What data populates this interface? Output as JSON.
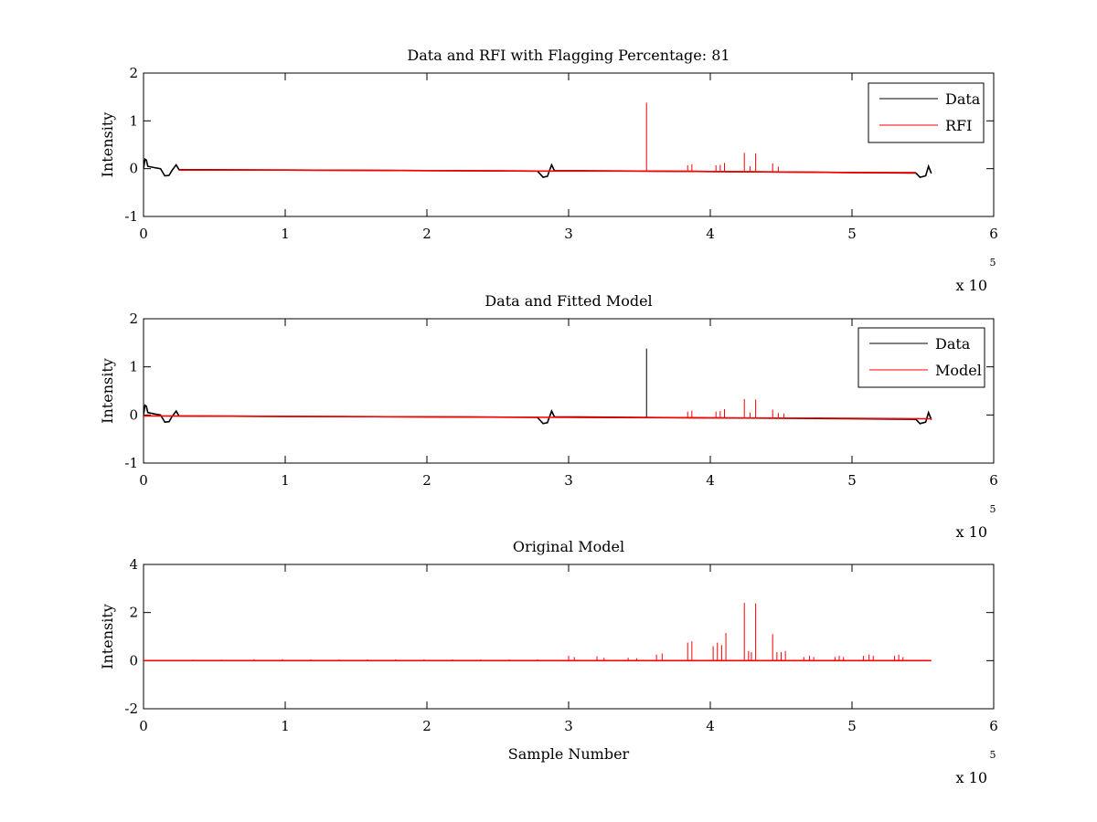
{
  "chart_data": [
    {
      "type": "line",
      "title": "Data and RFI with Flagging Percentage: 81",
      "xlabel": "",
      "ylabel": "Intensity",
      "xlim": [
        0,
        6
      ],
      "ylim": [
        -1,
        2
      ],
      "xticks": [
        "0",
        "1",
        "2",
        "3",
        "4",
        "5",
        "6"
      ],
      "yticks": [
        "-1",
        "0",
        "1",
        "2"
      ],
      "x_exponent": {
        "base": "x 10",
        "power": "5"
      },
      "legend": {
        "placement": "top-right",
        "entries": [
          {
            "name": "Data",
            "color": "#000000"
          },
          {
            "name": "RFI",
            "color": "#ff0000"
          }
        ]
      },
      "series": [
        {
          "name": "Data",
          "color": "#000000",
          "points": [
            [
              0,
              0
            ],
            [
              0.01,
              0.2
            ],
            [
              0.02,
              0.18
            ],
            [
              0.03,
              0.05
            ],
            [
              0.08,
              0.02
            ],
            [
              0.12,
              0.0
            ],
            [
              0.15,
              -0.15
            ],
            [
              0.18,
              -0.14
            ],
            [
              0.2,
              -0.04
            ],
            [
              0.23,
              0.08
            ],
            [
              0.25,
              -0.02
            ],
            [
              1.0,
              -0.03
            ],
            [
              2.0,
              -0.04
            ],
            [
              2.78,
              -0.05
            ],
            [
              2.82,
              -0.18
            ],
            [
              2.85,
              -0.16
            ],
            [
              2.88,
              0.08
            ],
            [
              2.9,
              -0.04
            ],
            [
              3.5,
              -0.05
            ],
            [
              4.0,
              -0.06
            ],
            [
              4.5,
              -0.07
            ],
            [
              5.0,
              -0.08
            ],
            [
              5.45,
              -0.09
            ],
            [
              5.48,
              -0.18
            ],
            [
              5.52,
              -0.15
            ],
            [
              5.54,
              0.05
            ],
            [
              5.56,
              -0.1
            ]
          ]
        },
        {
          "name": "RFI",
          "color": "#ff0000",
          "baseline": [
            [
              0.25,
              -0.03
            ],
            [
              1.0,
              -0.03
            ],
            [
              2.0,
              -0.04
            ],
            [
              2.82,
              -0.05
            ],
            [
              2.9,
              -0.05
            ],
            [
              3.5,
              -0.05
            ],
            [
              4.0,
              -0.06
            ],
            [
              4.5,
              -0.07
            ],
            [
              5.0,
              -0.08
            ],
            [
              5.45,
              -0.08
            ]
          ],
          "spikes": [
            [
              3.55,
              1.38
            ],
            [
              3.84,
              0.07
            ],
            [
              3.87,
              0.09
            ],
            [
              4.04,
              0.07
            ],
            [
              4.07,
              0.08
            ],
            [
              4.1,
              0.12
            ],
            [
              4.24,
              0.33
            ],
            [
              4.28,
              0.05
            ],
            [
              4.32,
              0.32
            ],
            [
              4.44,
              0.11
            ],
            [
              4.48,
              0.04
            ]
          ]
        }
      ]
    },
    {
      "type": "line",
      "title": "Data and Fitted Model",
      "xlabel": "",
      "ylabel": "Intensity",
      "xlim": [
        0,
        6
      ],
      "ylim": [
        -1,
        2
      ],
      "xticks": [
        "0",
        "1",
        "2",
        "3",
        "4",
        "5",
        "6"
      ],
      "yticks": [
        "-1",
        "0",
        "1",
        "2"
      ],
      "x_exponent": {
        "base": "x 10",
        "power": "5"
      },
      "legend": {
        "placement": "top-right",
        "entries": [
          {
            "name": "Data",
            "color": "#000000"
          },
          {
            "name": "Model",
            "color": "#ff0000"
          }
        ]
      },
      "series": [
        {
          "name": "Data",
          "color": "#000000",
          "points": [
            [
              0,
              0
            ],
            [
              0.01,
              0.2
            ],
            [
              0.02,
              0.18
            ],
            [
              0.03,
              0.05
            ],
            [
              0.08,
              0.02
            ],
            [
              0.12,
              0.0
            ],
            [
              0.15,
              -0.15
            ],
            [
              0.18,
              -0.14
            ],
            [
              0.2,
              -0.04
            ],
            [
              0.23,
              0.08
            ],
            [
              0.25,
              -0.02
            ],
            [
              1.0,
              -0.03
            ],
            [
              2.0,
              -0.04
            ],
            [
              2.78,
              -0.05
            ],
            [
              2.82,
              -0.18
            ],
            [
              2.85,
              -0.16
            ],
            [
              2.88,
              0.08
            ],
            [
              2.9,
              -0.04
            ],
            [
              3.5,
              -0.05
            ],
            [
              4.0,
              -0.06
            ],
            [
              4.5,
              -0.07
            ],
            [
              5.0,
              -0.08
            ],
            [
              5.45,
              -0.09
            ],
            [
              5.48,
              -0.18
            ],
            [
              5.52,
              -0.15
            ],
            [
              5.54,
              0.05
            ],
            [
              5.56,
              -0.1
            ]
          ],
          "spikes": [
            [
              3.55,
              1.38
            ]
          ]
        },
        {
          "name": "Model",
          "color": "#ff0000",
          "baseline": [
            [
              0.0,
              -0.02
            ],
            [
              1.0,
              -0.03
            ],
            [
              2.0,
              -0.04
            ],
            [
              3.0,
              -0.05
            ],
            [
              4.0,
              -0.06
            ],
            [
              5.0,
              -0.07
            ],
            [
              5.56,
              -0.08
            ]
          ],
          "spikes": [
            [
              3.84,
              0.07
            ],
            [
              3.87,
              0.09
            ],
            [
              4.04,
              0.07
            ],
            [
              4.07,
              0.08
            ],
            [
              4.1,
              0.12
            ],
            [
              4.24,
              0.33
            ],
            [
              4.28,
              0.05
            ],
            [
              4.32,
              0.32
            ],
            [
              4.44,
              0.11
            ],
            [
              4.48,
              0.04
            ],
            [
              4.52,
              0.03
            ]
          ]
        }
      ]
    },
    {
      "type": "line",
      "title": "Original Model",
      "xlabel": "Sample Number",
      "ylabel": "Intensity",
      "xlim": [
        0,
        6
      ],
      "ylim": [
        -2,
        4
      ],
      "xticks": [
        "0",
        "1",
        "2",
        "3",
        "4",
        "5",
        "6"
      ],
      "yticks": [
        "-2",
        "0",
        "2",
        "4"
      ],
      "x_exponent": {
        "base": "x 10",
        "power": "5"
      },
      "series": [
        {
          "name": "Model",
          "color": "#ff0000",
          "baseline": [
            [
              0,
              0
            ],
            [
              5.56,
              0
            ]
          ],
          "spikes": [
            [
              0.05,
              0.03
            ],
            [
              0.35,
              0.04
            ],
            [
              0.55,
              0.04
            ],
            [
              0.78,
              0.06
            ],
            [
              0.98,
              0.06
            ],
            [
              1.18,
              0.05
            ],
            [
              1.38,
              0.05
            ],
            [
              1.58,
              0.05
            ],
            [
              1.78,
              0.05
            ],
            [
              1.98,
              0.05
            ],
            [
              2.18,
              0.05
            ],
            [
              2.38,
              0.05
            ],
            [
              2.58,
              0.05
            ],
            [
              2.78,
              0.05
            ],
            [
              3.0,
              0.2
            ],
            [
              3.04,
              0.15
            ],
            [
              3.2,
              0.18
            ],
            [
              3.25,
              0.12
            ],
            [
              3.42,
              0.12
            ],
            [
              3.48,
              0.1
            ],
            [
              3.62,
              0.25
            ],
            [
              3.66,
              0.3
            ],
            [
              3.84,
              0.75
            ],
            [
              3.87,
              0.8
            ],
            [
              4.02,
              0.6
            ],
            [
              4.05,
              0.75
            ],
            [
              4.08,
              0.65
            ],
            [
              4.11,
              1.15
            ],
            [
              4.24,
              2.4
            ],
            [
              4.27,
              0.4
            ],
            [
              4.29,
              0.35
            ],
            [
              4.32,
              2.38
            ],
            [
              4.44,
              1.1
            ],
            [
              4.47,
              0.35
            ],
            [
              4.5,
              0.35
            ],
            [
              4.53,
              0.4
            ],
            [
              4.66,
              0.15
            ],
            [
              4.7,
              0.2
            ],
            [
              4.73,
              0.15
            ],
            [
              4.88,
              0.15
            ],
            [
              4.91,
              0.2
            ],
            [
              4.94,
              0.15
            ],
            [
              5.08,
              0.2
            ],
            [
              5.12,
              0.25
            ],
            [
              5.15,
              0.2
            ],
            [
              5.3,
              0.2
            ],
            [
              5.33,
              0.25
            ],
            [
              5.36,
              0.15
            ]
          ]
        }
      ]
    }
  ]
}
